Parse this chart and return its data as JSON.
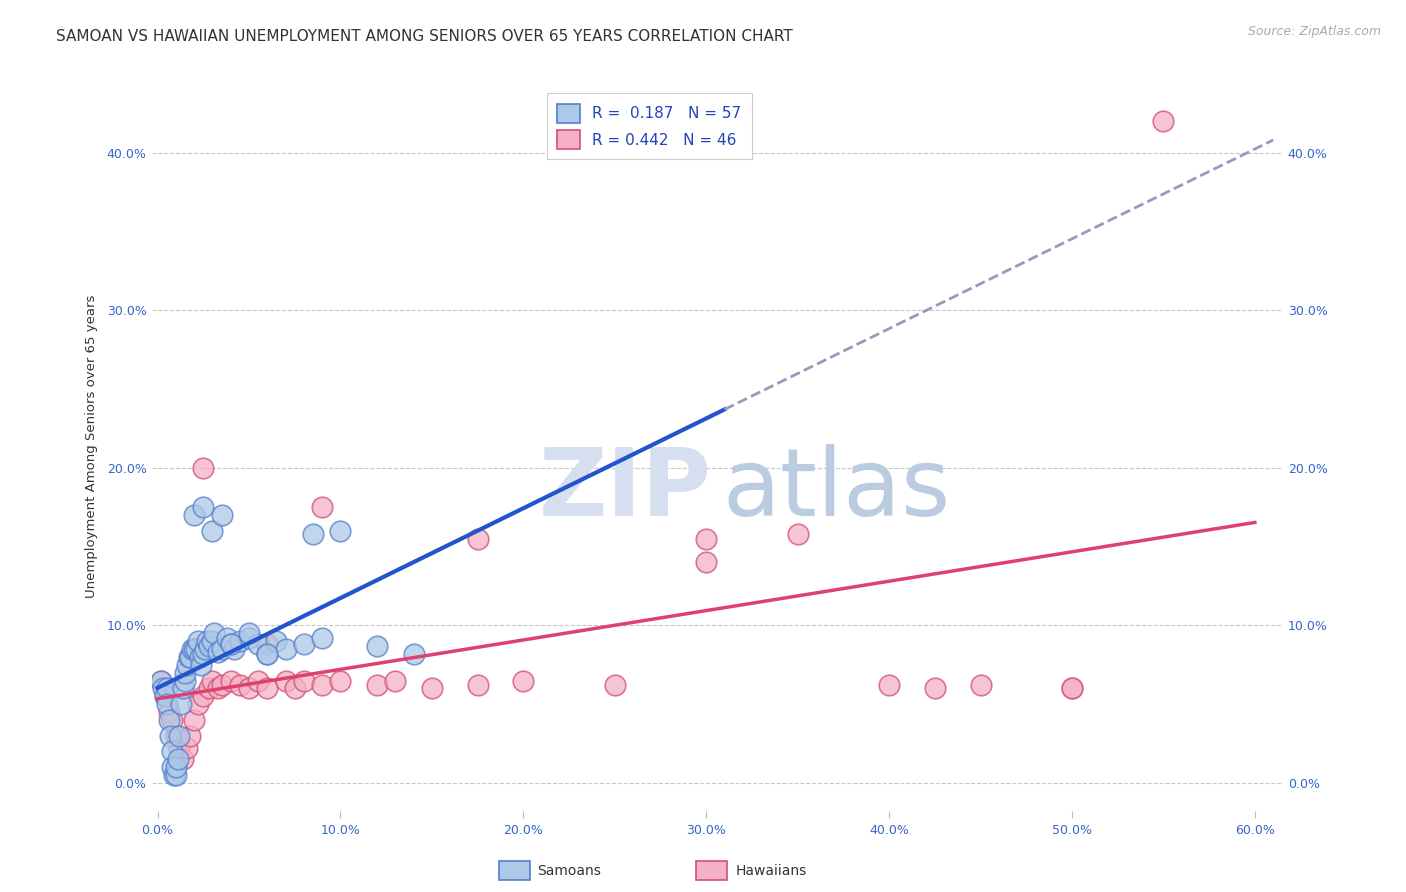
{
  "title": "SAMOAN VS HAWAIIAN UNEMPLOYMENT AMONG SENIORS OVER 65 YEARS CORRELATION CHART",
  "source": "Source: ZipAtlas.com",
  "ylabel_text": "Unemployment Among Seniors over 65 years",
  "xlim": [
    -0.003,
    0.615
  ],
  "ylim": [
    -0.018,
    0.445
  ],
  "xticks": [
    0.0,
    0.1,
    0.2,
    0.3,
    0.4,
    0.5,
    0.6
  ],
  "yticks": [
    0.0,
    0.1,
    0.2,
    0.3,
    0.4
  ],
  "xtick_labels": [
    "0.0%",
    "10.0%",
    "20.0%",
    "30.0%",
    "40.0%",
    "50.0%",
    "60.0%"
  ],
  "ytick_labels": [
    "0.0%",
    "10.0%",
    "20.0%",
    "30.0%",
    "40.0%"
  ],
  "background_color": "#ffffff",
  "grid_color": "#c8c8c8",
  "samoan_fill": "#adc8e8",
  "samoan_edge": "#5580cc",
  "hawaiian_fill": "#f5b0c5",
  "hawaiian_edge": "#d05075",
  "blue_line_color": "#2255cc",
  "pink_line_color": "#e04070",
  "dashed_color": "#9999bb",
  "watermark_zip_color": "#d5dff0",
  "watermark_atlas_color": "#bccce0",
  "legend_line1": "R =  0.187   N = 57",
  "legend_line2": "R = 0.442   N = 46",
  "samoan_x": [
    0.002,
    0.003,
    0.004,
    0.005,
    0.005,
    0.006,
    0.007,
    0.008,
    0.008,
    0.009,
    0.01,
    0.01,
    0.011,
    0.012,
    0.013,
    0.014,
    0.015,
    0.015,
    0.016,
    0.017,
    0.018,
    0.019,
    0.02,
    0.021,
    0.022,
    0.023,
    0.024,
    0.025,
    0.026,
    0.027,
    0.028,
    0.03,
    0.031,
    0.033,
    0.035,
    0.038,
    0.04,
    0.042,
    0.045,
    0.05,
    0.055,
    0.06,
    0.065,
    0.07,
    0.08,
    0.085,
    0.09,
    0.1,
    0.12,
    0.14,
    0.02,
    0.025,
    0.03,
    0.035,
    0.04,
    0.05,
    0.06
  ],
  "samoan_y": [
    0.065,
    0.06,
    0.055,
    0.06,
    0.05,
    0.04,
    0.03,
    0.02,
    0.01,
    0.005,
    0.005,
    0.01,
    0.015,
    0.03,
    0.05,
    0.06,
    0.065,
    0.07,
    0.075,
    0.08,
    0.08,
    0.085,
    0.085,
    0.085,
    0.09,
    0.08,
    0.075,
    0.082,
    0.085,
    0.09,
    0.087,
    0.09,
    0.095,
    0.083,
    0.085,
    0.092,
    0.088,
    0.085,
    0.09,
    0.092,
    0.088,
    0.082,
    0.09,
    0.085,
    0.088,
    0.158,
    0.092,
    0.16,
    0.087,
    0.082,
    0.17,
    0.175,
    0.16,
    0.17,
    0.088,
    0.095,
    0.082
  ],
  "hawaiian_x": [
    0.002,
    0.004,
    0.006,
    0.008,
    0.01,
    0.012,
    0.014,
    0.016,
    0.018,
    0.02,
    0.022,
    0.025,
    0.028,
    0.03,
    0.033,
    0.035,
    0.04,
    0.045,
    0.05,
    0.055,
    0.06,
    0.07,
    0.075,
    0.08,
    0.09,
    0.1,
    0.12,
    0.13,
    0.15,
    0.175,
    0.2,
    0.25,
    0.3,
    0.35,
    0.4,
    0.45,
    0.5,
    0.55,
    0.025,
    0.09,
    0.175,
    0.3,
    0.425,
    0.5,
    0.02,
    0.06
  ],
  "hawaiian_y": [
    0.065,
    0.055,
    0.045,
    0.04,
    0.03,
    0.022,
    0.015,
    0.022,
    0.03,
    0.04,
    0.05,
    0.055,
    0.06,
    0.065,
    0.06,
    0.062,
    0.065,
    0.062,
    0.06,
    0.065,
    0.06,
    0.065,
    0.06,
    0.065,
    0.062,
    0.065,
    0.062,
    0.065,
    0.06,
    0.062,
    0.065,
    0.062,
    0.14,
    0.158,
    0.062,
    0.062,
    0.06,
    0.42,
    0.2,
    0.175,
    0.155,
    0.155,
    0.06,
    0.06,
    0.085,
    0.088
  ],
  "title_fontsize": 11,
  "label_fontsize": 9.5,
  "tick_fontsize": 9,
  "legend_fontsize": 11,
  "source_fontsize": 9,
  "dot_size": 220,
  "blue_line_end_x": 0.31,
  "pink_line_end_x": 0.6
}
